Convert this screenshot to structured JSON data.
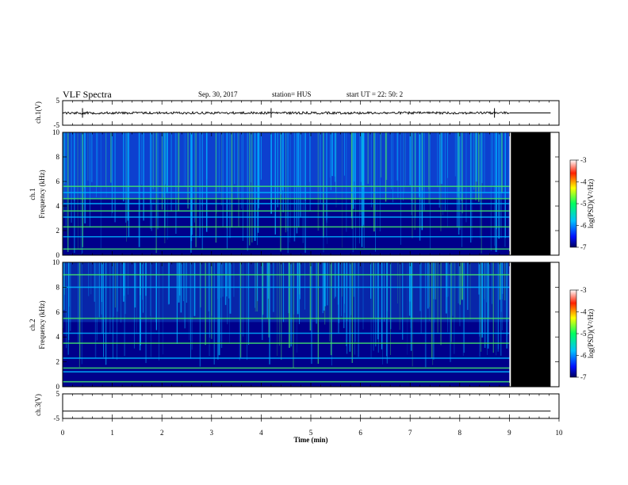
{
  "header": {
    "title": "VLF Spectra",
    "date": "Sep. 30, 2017",
    "station": "station= HUS",
    "start": "start UT =  22: 50: 2"
  },
  "chart_data": {
    "type": "heatmap",
    "x": {
      "label": "Time (min)",
      "range": [
        0,
        10
      ],
      "ticks": [
        "0",
        "1",
        "2",
        "3",
        "4",
        "5",
        "6",
        "7",
        "8",
        "9",
        "10"
      ]
    },
    "data_end_min": 9.0,
    "panels": [
      {
        "id": "ch1_waveform",
        "type": "line",
        "ylabel": "ch.1(V)",
        "yticks": [
          "5",
          "-5"
        ],
        "ylim": [
          -5,
          5
        ],
        "baseline": 0,
        "spikes_min": [
          0.4,
          4.2,
          8.7
        ]
      },
      {
        "id": "ch1_spectrogram",
        "type": "heatmap",
        "ylabel_top": "ch.1",
        "ylabel": "Frequency (kHz)",
        "yticks": [
          "0",
          "2",
          "4",
          "6",
          "8",
          "10"
        ],
        "ylim": [
          0,
          10
        ],
        "band_lines_khz": [
          0.5,
          1.5,
          2.3,
          3.1,
          3.6,
          4.2,
          4.6,
          5.1,
          5.6
        ],
        "colorbar": {
          "label": "log(PSD)(V²/Hz)",
          "ticks": [
            "-3",
            "-4",
            "-5",
            "-6",
            "-7"
          ],
          "range": [
            -7,
            -3
          ]
        }
      },
      {
        "id": "ch2_spectrogram",
        "type": "heatmap",
        "ylabel_top": "ch.2",
        "ylabel": "Frequency (kHz)",
        "yticks": [
          "0",
          "2",
          "4",
          "6",
          "8",
          "10"
        ],
        "ylim": [
          0,
          10
        ],
        "band_lines_khz": [
          0.4,
          1.2,
          1.5,
          2.3,
          3.5,
          4.3,
          5.5,
          8.0,
          9.0
        ],
        "colorbar": {
          "label": "log(PSD)(V²/Hz)",
          "ticks": [
            "-3",
            "-4",
            "-5",
            "-6",
            "-7"
          ],
          "range": [
            -7,
            -3
          ]
        }
      },
      {
        "id": "ch3_waveform",
        "type": "line",
        "ylabel": "ch.3(V)",
        "yticks": [
          "5",
          "-5"
        ],
        "ylim": [
          -5,
          5
        ],
        "baseline": -2
      }
    ],
    "colors": {
      "low": "#00008b",
      "mid": "#00b4ff",
      "high": "#40e070",
      "nodata": "#000000"
    }
  }
}
